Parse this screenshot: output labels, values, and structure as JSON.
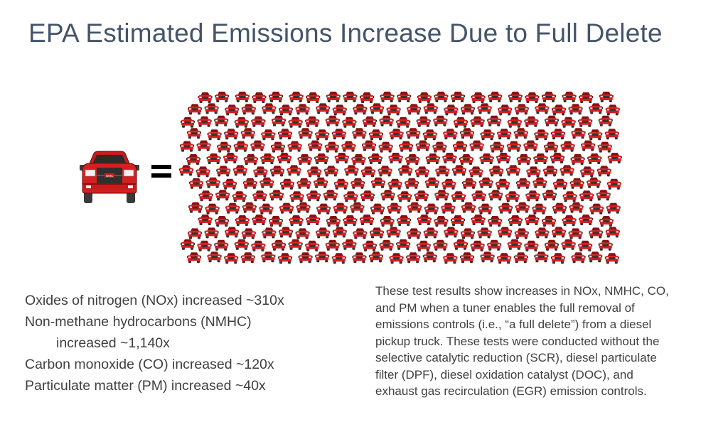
{
  "slide": {
    "title": "EPA Estimated Emissions Increase Due to Full Delete"
  },
  "graphic": {
    "big_truck_icon": "pickup-truck-front-icon",
    "grille_badge": "GMC",
    "equals_icon": "equals-sign-icon",
    "small_truck_icon": "pickup-truck-front-icon",
    "colors": {
      "truck_body": "#d42020",
      "truck_dark": "#8c1010",
      "glass": "#2a2a2a",
      "tire": "#3a3a3a"
    }
  },
  "stats": {
    "items": [
      "Oxides of nitrogen (NOx) increased ~310x",
      "Non-methane hydrocarbons (NMHC)",
      "increased ~1,140x",
      "Carbon monoxide (CO) increased ~120x",
      "Particulate matter (PM) increased ~40x"
    ]
  },
  "description": {
    "lines": [
      "These test results show increases in NOx, NMHC, CO,",
      "and PM when a tuner enables the full removal of",
      "emissions controls (i.e., “a full delete”) from a diesel",
      "pickup truck. These tests were conducted without the",
      "selective catalytic reduction (SCR), diesel particulate",
      "filter (DPF), diesel oxidation catalyst (DOC), and",
      "exhaust gas recirculation (EGR) emission controls."
    ]
  }
}
